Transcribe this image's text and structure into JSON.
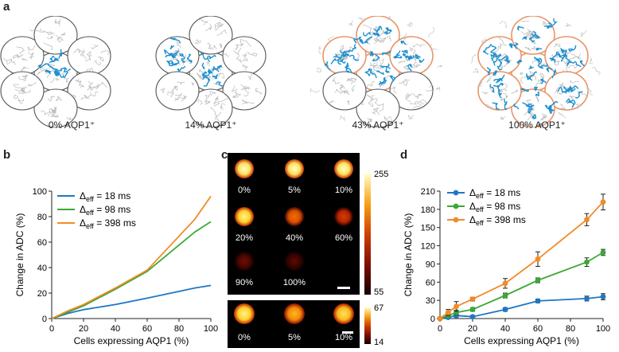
{
  "figure": {
    "panel_letters": {
      "a": "a",
      "b": "b",
      "c": "c",
      "d": "d"
    }
  },
  "panel_a": {
    "captions": [
      "0% AQP1⁺",
      "14% AQP1⁺",
      "43% AQP1⁺",
      "100% AQP1⁺"
    ]
  },
  "panel_c": {
    "top_colorbar": {
      "max": "255",
      "min": "55"
    },
    "bottom_colorbar": {
      "max": "67",
      "min": "14"
    },
    "top_labels": [
      "0%",
      "5%",
      "10%",
      "20%",
      "40%",
      "60%",
      "90%",
      "100%"
    ],
    "top_intensities": [
      0.9,
      0.9,
      0.9,
      0.85,
      0.55,
      0.4,
      0.12,
      0.08
    ],
    "bottom_labels": [
      "0%",
      "5%",
      "10%"
    ],
    "bottom_intensities": [
      0.85,
      0.7,
      0.8
    ]
  },
  "colors": {
    "blue": "#1f77c4",
    "green": "#3aa935",
    "orange": "#f28a26",
    "cell_blue": "#1b8fd0",
    "cell_outline": "#555555",
    "orange_ring": "#e8956a"
  },
  "chart_data": [
    {
      "id": "b",
      "type": "line",
      "xlabel": "Cells expressing AQP1 (%)",
      "ylabel": "Change in ADC (%)",
      "xlim": [
        0,
        100
      ],
      "ylim": [
        0,
        100
      ],
      "xticks": [
        0,
        20,
        40,
        60,
        80,
        100
      ],
      "yticks": [
        0,
        20,
        40,
        60,
        80,
        100
      ],
      "series": [
        {
          "name": "Δeff = 18 ms",
          "label_base": "Δ",
          "label_sub": "eff",
          "label_rest": " = 18 ms",
          "color": "#1f77c4",
          "x": [
            0,
            10,
            20,
            40,
            60,
            90,
            100
          ],
          "y": [
            0,
            4,
            7,
            11,
            16,
            24,
            26
          ]
        },
        {
          "name": "Δeff = 98 ms",
          "label_base": "Δ",
          "label_sub": "eff",
          "label_rest": " = 98 ms",
          "color": "#3aa935",
          "x": [
            0,
            10,
            20,
            40,
            60,
            90,
            100
          ],
          "y": [
            0,
            5,
            10,
            23,
            37,
            68,
            76
          ]
        },
        {
          "name": "Δeff = 398 ms",
          "label_base": "Δ",
          "label_sub": "eff",
          "label_rest": " = 398 ms",
          "color": "#f28a26",
          "x": [
            0,
            10,
            20,
            40,
            60,
            90,
            100
          ],
          "y": [
            0,
            6,
            11,
            24,
            38,
            78,
            96
          ]
        }
      ]
    },
    {
      "id": "d",
      "type": "line",
      "xlabel": "Cells expressing AQP1 (%)",
      "ylabel": "Change in ADC (%)",
      "xlim": [
        0,
        100
      ],
      "ylim": [
        0,
        210
      ],
      "xticks": [
        0,
        20,
        40,
        60,
        80,
        100
      ],
      "yticks": [
        0,
        30,
        60,
        90,
        120,
        150,
        180,
        210
      ],
      "series": [
        {
          "name": "Δeff = 18 ms",
          "label_base": "Δ",
          "label_sub": "eff",
          "label_rest": " = 18 ms",
          "color": "#1f77c4",
          "x": [
            0,
            5,
            10,
            20,
            40,
            60,
            90,
            100
          ],
          "y": [
            0,
            2,
            5,
            3,
            15,
            29,
            33,
            36
          ],
          "err": [
            2,
            2,
            3,
            2,
            3,
            3,
            4,
            5
          ]
        },
        {
          "name": "Δeff = 98 ms",
          "label_base": "Δ",
          "label_sub": "eff",
          "label_rest": " = 98 ms",
          "color": "#3aa935",
          "x": [
            0,
            5,
            10,
            20,
            40,
            60,
            90,
            100
          ],
          "y": [
            0,
            5,
            10,
            15,
            38,
            63,
            93,
            109
          ],
          "err": [
            2,
            3,
            4,
            3,
            4,
            4,
            7,
            5
          ]
        },
        {
          "name": "Δeff = 398 ms",
          "label_base": "Δ",
          "label_sub": "eff",
          "label_rest": " = 398 ms",
          "color": "#f28a26",
          "x": [
            0,
            5,
            10,
            20,
            40,
            60,
            90,
            100
          ],
          "y": [
            0,
            10,
            20,
            32,
            58,
            98,
            163,
            192
          ],
          "err": [
            2,
            5,
            8,
            3,
            8,
            12,
            10,
            13
          ]
        }
      ]
    }
  ]
}
